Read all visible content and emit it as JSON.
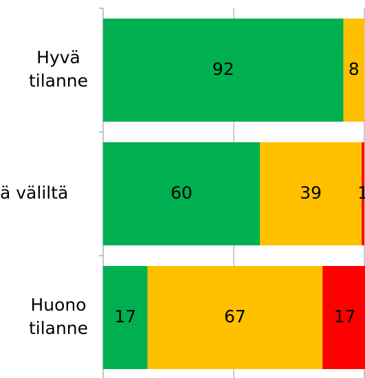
{
  "chart_data": {
    "type": "stacked_barh",
    "categories": [
      [
        "Hyvä",
        "tilanne"
      ],
      [
        "ä väliltä"
      ],
      [
        "Huono",
        "tilanne"
      ]
    ],
    "series": [
      {
        "color": "#00b050",
        "values": [
          92,
          60,
          17
        ]
      },
      {
        "color": "#ffc000",
        "values": [
          8,
          39,
          67
        ]
      },
      {
        "color": "#ff0000",
        "values": [
          0,
          1,
          17
        ]
      }
    ],
    "xlim": [
      0,
      100
    ],
    "xticks": [
      0,
      50,
      100
    ],
    "grid": true
  }
}
